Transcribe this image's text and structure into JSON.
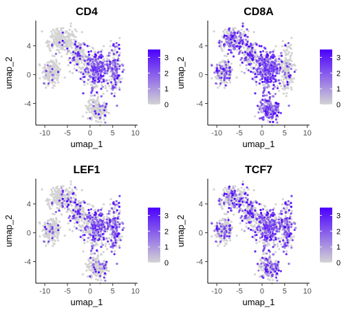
{
  "chart_data": [
    {
      "type": "scatter",
      "title": "CD4",
      "xlabel": "umap_1",
      "ylabel": "umap_2",
      "xlim": [
        -12,
        10.5
      ],
      "ylim": [
        -7,
        7.5
      ],
      "x_ticks": [
        -10,
        -5,
        0,
        5,
        10
      ],
      "y_ticks": [
        -4,
        0,
        4
      ],
      "color_scale": {
        "low": "#d3d3d3",
        "high": "#4b00ff",
        "min": 0,
        "max": 3.5,
        "ticks": [
          0,
          1,
          2,
          3
        ]
      },
      "expression_pattern": {
        "left-cluster": 0.05,
        "top-cluster": 0.05,
        "upper-middle": 0.15,
        "center-right": 0.5,
        "right-arm": 0.55,
        "bottom-cluster": 0.1
      }
    },
    {
      "type": "scatter",
      "title": "CD8A",
      "xlabel": "umap_1",
      "ylabel": "umap_2",
      "xlim": [
        -12,
        10.5
      ],
      "ylim": [
        -7,
        7.5
      ],
      "x_ticks": [
        -10,
        -5,
        0,
        5,
        10
      ],
      "y_ticks": [
        -4,
        0,
        4
      ],
      "color_scale": {
        "low": "#d3d3d3",
        "high": "#4b00ff",
        "min": 0,
        "max": 3.5,
        "ticks": [
          0,
          1,
          2,
          3
        ]
      },
      "expression_pattern": {
        "left-cluster": 0.35,
        "top-cluster": 0.45,
        "upper-middle": 0.35,
        "center-right": 0.85,
        "right-arm": 0.12,
        "bottom-cluster": 0.85
      }
    },
    {
      "type": "scatter",
      "title": "LEF1",
      "xlabel": "umap_1",
      "ylabel": "umap_2",
      "xlim": [
        -12,
        10.5
      ],
      "ylim": [
        -7,
        7.5
      ],
      "x_ticks": [
        -10,
        -5,
        0,
        5,
        10
      ],
      "y_ticks": [
        -4,
        0,
        4
      ],
      "color_scale": {
        "low": "#d3d3d3",
        "high": "#4b00ff",
        "min": 0,
        "max": 3.5,
        "ticks": [
          0,
          1,
          2,
          3
        ]
      },
      "expression_pattern": {
        "left-cluster": 0.1,
        "top-cluster": 0.1,
        "upper-middle": 0.2,
        "center-right": 0.4,
        "right-arm": 0.6,
        "bottom-cluster": 0.15
      }
    },
    {
      "type": "scatter",
      "title": "TCF7",
      "xlabel": "umap_1",
      "ylabel": "umap_2",
      "xlim": [
        -12,
        10.5
      ],
      "ylim": [
        -7,
        7.5
      ],
      "x_ticks": [
        -10,
        -5,
        0,
        5,
        10
      ],
      "y_ticks": [
        -4,
        0,
        4
      ],
      "color_scale": {
        "low": "#d3d3d3",
        "high": "#4b00ff",
        "min": 0,
        "max": 3.5,
        "ticks": [
          0,
          1,
          2,
          3
        ]
      },
      "expression_pattern": {
        "left-cluster": 0.3,
        "top-cluster": 0.25,
        "upper-middle": 0.35,
        "center-right": 0.55,
        "right-arm": 0.6,
        "bottom-cluster": 0.45
      }
    }
  ]
}
